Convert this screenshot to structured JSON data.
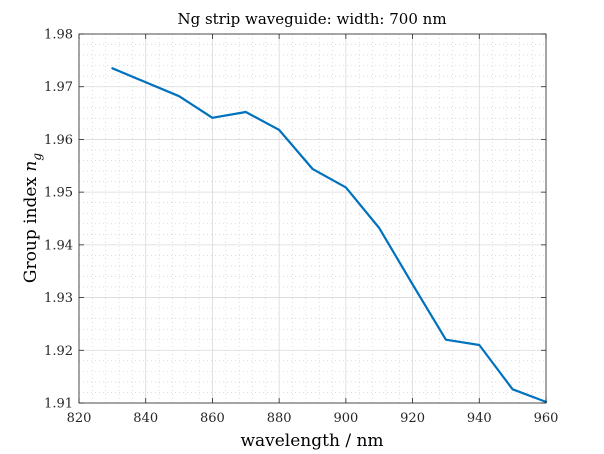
{
  "chart_data": {
    "type": "line",
    "title": "Ng strip waveguide: width: 700 nm",
    "xlabel": "wavelength / nm",
    "ylabel_prefix": "Group index ",
    "ylabel_symbol": "n",
    "ylabel_subscript": "g",
    "xlim": [
      820,
      960
    ],
    "ylim": [
      1.91,
      1.98
    ],
    "xticks": [
      "820",
      "840",
      "860",
      "880",
      "900",
      "920",
      "940",
      "960"
    ],
    "yticks": [
      "1.91",
      "1.92",
      "1.93",
      "1.94",
      "1.95",
      "1.96",
      "1.97",
      "1.98"
    ],
    "grid": true,
    "minor_grid": true,
    "series": [
      {
        "color": "#0072BD",
        "x": [
          830,
          850,
          860,
          870,
          880,
          890,
          900,
          910,
          920,
          930,
          940,
          950,
          960
        ],
        "y": [
          1.9735,
          1.9682,
          1.9641,
          1.9652,
          1.9618,
          1.9544,
          1.9509,
          1.9432,
          1.9325,
          1.922,
          1.921,
          1.9126,
          1.9102
        ]
      }
    ]
  }
}
